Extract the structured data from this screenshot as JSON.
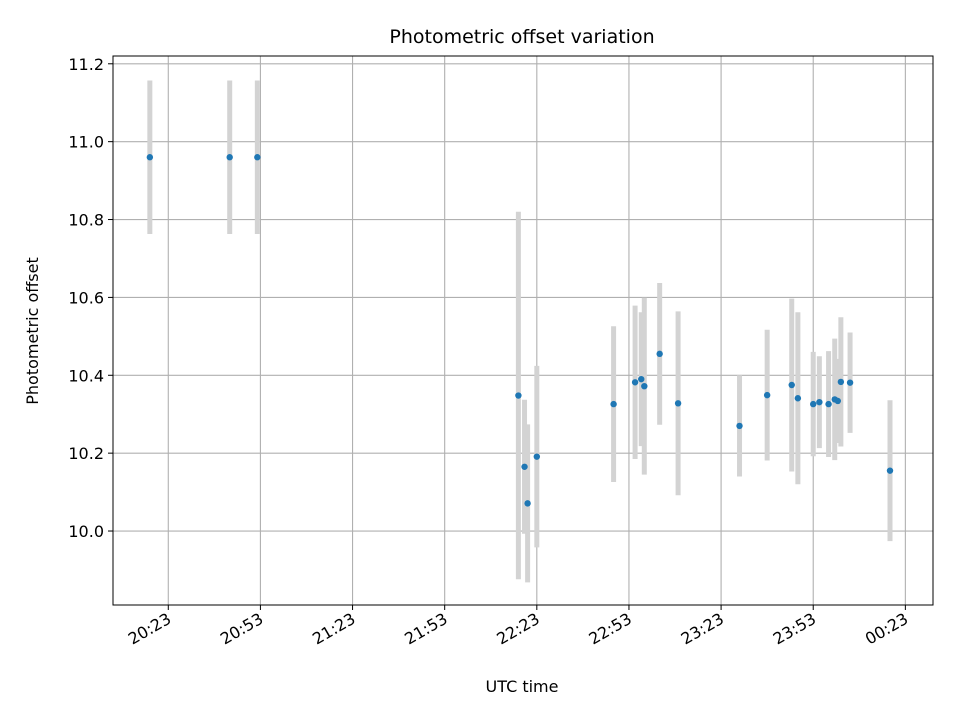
{
  "colors": {
    "marker": "#1f77b4",
    "errorbar": "#d3d3d3",
    "grid": "#b0b0b0",
    "axes": "#000000"
  },
  "chart_data": {
    "type": "scatter",
    "title": "Photometric offset variation",
    "xlabel": "UTC time",
    "ylabel": "Photometric offset",
    "grid": true,
    "xlim": [
      "20:05",
      "00:32"
    ],
    "ylim": [
      9.81,
      11.22
    ],
    "x_ticks": [
      "20:23",
      "20:53",
      "21:23",
      "21:53",
      "22:23",
      "22:53",
      "23:23",
      "23:53",
      "00:23"
    ],
    "y_ticks": [
      10.0,
      10.2,
      10.4,
      10.6,
      10.8,
      11.0,
      11.2
    ],
    "y_tick_labels": [
      "10.0",
      "10.2",
      "10.4",
      "10.6",
      "10.8",
      "11.0",
      "11.2"
    ],
    "points": [
      {
        "x": "20:17",
        "y": 10.96,
        "err": 0.197
      },
      {
        "x": "20:43",
        "y": 10.96,
        "err": 0.197
      },
      {
        "x": "20:52",
        "y": 10.96,
        "err": 0.197
      },
      {
        "x": "22:17",
        "y": 10.348,
        "err": 0.472
      },
      {
        "x": "22:19",
        "y": 10.165,
        "err": 0.172
      },
      {
        "x": "22:20",
        "y": 10.071,
        "err": 0.203
      },
      {
        "x": "22:23",
        "y": 10.191,
        "err": 0.233
      },
      {
        "x": "22:48",
        "y": 10.326,
        "err": 0.2
      },
      {
        "x": "22:55",
        "y": 10.382,
        "err": 0.197
      },
      {
        "x": "22:57",
        "y": 10.39,
        "err": 0.172
      },
      {
        "x": "22:58",
        "y": 10.372,
        "err": 0.227
      },
      {
        "x": "23:03",
        "y": 10.455,
        "err": 0.182
      },
      {
        "x": "23:09",
        "y": 10.328,
        "err": 0.236
      },
      {
        "x": "23:29",
        "y": 10.27,
        "err": 0.13
      },
      {
        "x": "23:38",
        "y": 10.349,
        "err": 0.168
      },
      {
        "x": "23:46",
        "y": 10.375,
        "err": 0.222
      },
      {
        "x": "23:48",
        "y": 10.341,
        "err": 0.221
      },
      {
        "x": "23:53",
        "y": 10.326,
        "err": 0.134
      },
      {
        "x": "23:55",
        "y": 10.331,
        "err": 0.118
      },
      {
        "x": "23:58",
        "y": 10.326,
        "err": 0.136
      },
      {
        "x": "00:00",
        "y": 10.338,
        "err": 0.156
      },
      {
        "x": "00:01",
        "y": 10.334,
        "err": 0.108
      },
      {
        "x": "00:02",
        "y": 10.383,
        "err": 0.166
      },
      {
        "x": "00:05",
        "y": 10.381,
        "err": 0.129
      },
      {
        "x": "00:18",
        "y": 10.155,
        "err": 0.181
      }
    ]
  }
}
